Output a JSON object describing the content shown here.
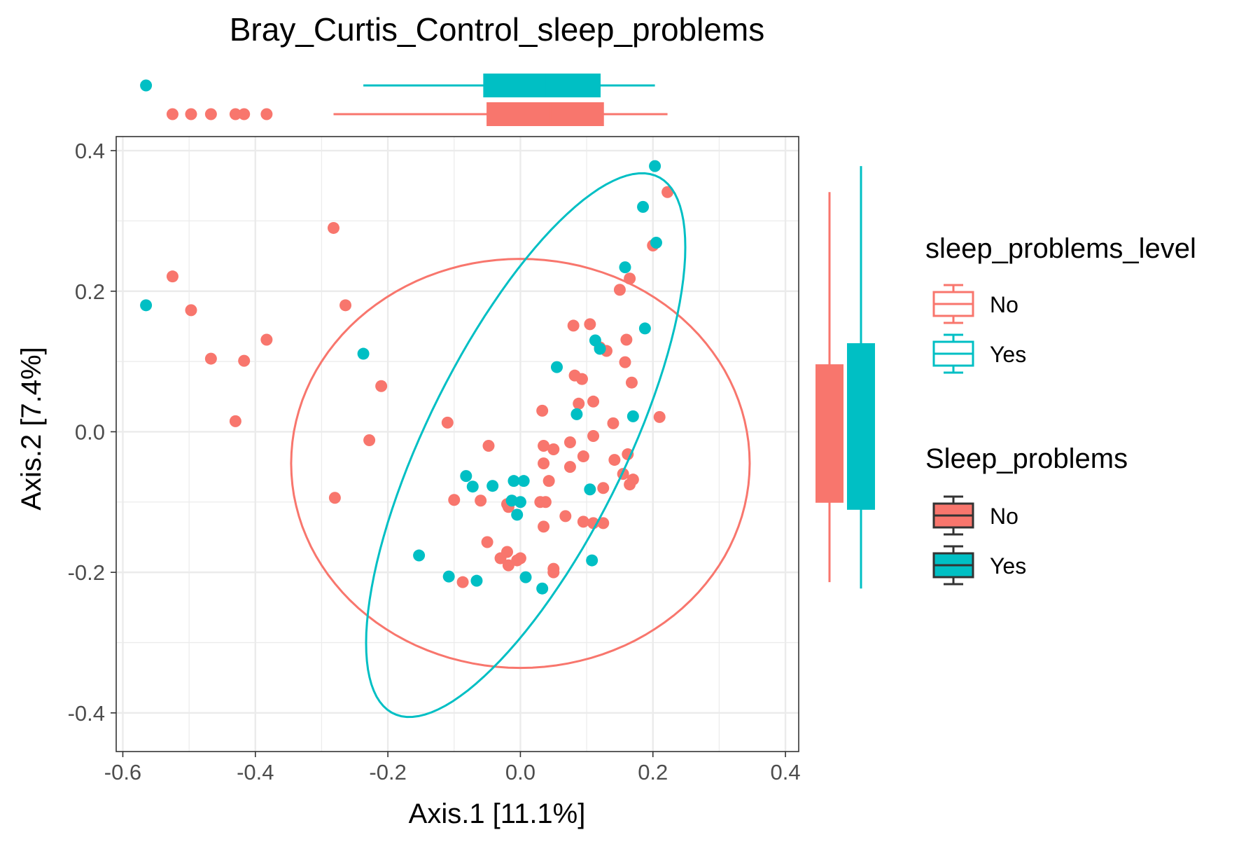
{
  "chart_data": {
    "type": "scatter",
    "title": "Bray_Curtis_Control_sleep_problems",
    "xlabel": "Axis.1   [11.1%]",
    "ylabel": "Axis.2   [7.4%]",
    "xlim": [
      -0.61,
      0.42
    ],
    "ylim": [
      -0.455,
      0.42
    ],
    "xticks": [
      -0.6,
      -0.4,
      -0.2,
      0.0,
      0.2,
      0.4
    ],
    "xtick_labels": [
      "-0.6",
      "-0.4",
      "-0.2",
      "0.0",
      "0.2",
      "0.4"
    ],
    "yticks": [
      -0.4,
      -0.2,
      0.0,
      0.2,
      0.4
    ],
    "ytick_labels": [
      "-0.4",
      "-0.2",
      "0.0",
      "0.2",
      "0.4"
    ],
    "grid": true,
    "legend_placement": "right",
    "legends": [
      {
        "title": "sleep_problems_level",
        "style": "outline",
        "entries": [
          "No",
          "Yes"
        ]
      },
      {
        "title": "Sleep_problems",
        "style": "filled",
        "entries": [
          "No",
          "Yes"
        ]
      }
    ],
    "colors": {
      "No": "#F8766D",
      "Yes": "#00BFC4",
      "axis": "#333333",
      "grid": "#EBEBEB"
    },
    "series": [
      {
        "name": "No",
        "color": "#F8766D",
        "points": [
          [
            -0.525,
            0.221
          ],
          [
            -0.497,
            0.173
          ],
          [
            -0.467,
            0.104
          ],
          [
            -0.417,
            0.101
          ],
          [
            -0.43,
            0.015
          ],
          [
            -0.383,
            0.131
          ],
          [
            -0.282,
            0.29
          ],
          [
            -0.264,
            0.18
          ],
          [
            -0.28,
            -0.094
          ],
          [
            -0.21,
            0.065
          ],
          [
            -0.228,
            -0.012
          ],
          [
            -0.11,
            0.013
          ],
          [
            -0.1,
            -0.097
          ],
          [
            -0.06,
            -0.098
          ],
          [
            -0.048,
            -0.02
          ],
          [
            -0.05,
            -0.157
          ],
          [
            -0.087,
            -0.214
          ],
          [
            -0.02,
            -0.103
          ],
          [
            -0.018,
            -0.107
          ],
          [
            -0.02,
            -0.171
          ],
          [
            -0.03,
            -0.18
          ],
          [
            -0.018,
            -0.19
          ],
          [
            -0.005,
            -0.183
          ],
          [
            0.0,
            -0.18
          ],
          [
            0.03,
            -0.1
          ],
          [
            0.035,
            -0.135
          ],
          [
            0.038,
            -0.1
          ],
          [
            0.043,
            -0.07
          ],
          [
            0.033,
            0.03
          ],
          [
            0.035,
            -0.045
          ],
          [
            0.035,
            -0.02
          ],
          [
            0.05,
            -0.025
          ],
          [
            0.05,
            -0.2
          ],
          [
            0.05,
            -0.195
          ],
          [
            0.068,
            -0.12
          ],
          [
            0.075,
            -0.05
          ],
          [
            0.075,
            -0.015
          ],
          [
            0.08,
            0.151
          ],
          [
            0.082,
            0.08
          ],
          [
            0.088,
            0.04
          ],
          [
            0.093,
            0.075
          ],
          [
            0.095,
            -0.035
          ],
          [
            0.095,
            -0.128
          ],
          [
            0.105,
            0.153
          ],
          [
            0.11,
            0.043
          ],
          [
            0.11,
            -0.006
          ],
          [
            0.11,
            -0.13
          ],
          [
            0.12,
            0.12
          ],
          [
            0.125,
            -0.08
          ],
          [
            0.125,
            -0.13
          ],
          [
            0.13,
            0.115
          ],
          [
            0.14,
            0.012
          ],
          [
            0.142,
            -0.04
          ],
          [
            0.15,
            0.202
          ],
          [
            0.158,
            0.099
          ],
          [
            0.16,
            0.131
          ],
          [
            0.162,
            -0.032
          ],
          [
            0.165,
            -0.075
          ],
          [
            0.165,
            0.218
          ],
          [
            0.168,
            0.07
          ],
          [
            0.17,
            -0.068
          ],
          [
            0.2,
            0.265
          ],
          [
            0.21,
            0.021
          ],
          [
            0.222,
            0.341
          ],
          [
            0.155,
            -0.06
          ]
        ]
      },
      {
        "name": "Yes",
        "color": "#00BFC4",
        "points": [
          [
            -0.565,
            0.18
          ],
          [
            -0.237,
            0.111
          ],
          [
            -0.153,
            -0.176
          ],
          [
            -0.108,
            -0.206
          ],
          [
            -0.082,
            -0.063
          ],
          [
            -0.072,
            -0.078
          ],
          [
            -0.066,
            -0.212
          ],
          [
            -0.042,
            -0.077
          ],
          [
            -0.013,
            -0.098
          ],
          [
            -0.01,
            -0.07
          ],
          [
            -0.005,
            -0.118
          ],
          [
            0.0,
            -0.1
          ],
          [
            0.005,
            -0.07
          ],
          [
            0.008,
            -0.207
          ],
          [
            0.033,
            -0.223
          ],
          [
            0.055,
            0.092
          ],
          [
            0.085,
            0.025
          ],
          [
            0.105,
            -0.082
          ],
          [
            0.108,
            -0.183
          ],
          [
            0.113,
            0.13
          ],
          [
            0.12,
            0.118
          ],
          [
            0.158,
            0.234
          ],
          [
            0.17,
            0.022
          ],
          [
            0.185,
            0.32
          ],
          [
            0.188,
            0.147
          ],
          [
            0.203,
            0.378
          ],
          [
            0.205,
            0.269
          ]
        ]
      }
    ],
    "ellipses": [
      {
        "group": "No",
        "center": [
          0.0,
          -0.045
        ],
        "semi_axes": [
          0.346,
          0.291
        ],
        "rotation_deg": 0
      },
      {
        "group": "Yes",
        "center": [
          0.008,
          -0.019
        ],
        "semi_axes": [
          0.431,
          0.148
        ],
        "rotation_deg": 62
      }
    ],
    "marginal_boxplots": {
      "x": [
        {
          "group": "Yes",
          "whisker_low": -0.237,
          "q1": -0.055,
          "median": 0.04,
          "q3": 0.12,
          "whisker_high": 0.203,
          "outliers": [
            -0.565
          ]
        },
        {
          "group": "No",
          "whisker_low": -0.282,
          "q1": -0.05,
          "median": 0.045,
          "q3": 0.125,
          "whisker_high": 0.222,
          "outliers": [
            -0.525,
            -0.497,
            -0.467,
            -0.43,
            -0.417,
            -0.383
          ]
        }
      ],
      "y": [
        {
          "group": "No",
          "whisker_low": -0.214,
          "q1": -0.1,
          "median": 0.0,
          "q3": 0.095,
          "whisker_high": 0.341,
          "outliers": []
        },
        {
          "group": "Yes",
          "whisker_low": -0.223,
          "q1": -0.11,
          "median": 0.0,
          "q3": 0.125,
          "whisker_high": 0.378,
          "outliers": []
        }
      ]
    }
  }
}
